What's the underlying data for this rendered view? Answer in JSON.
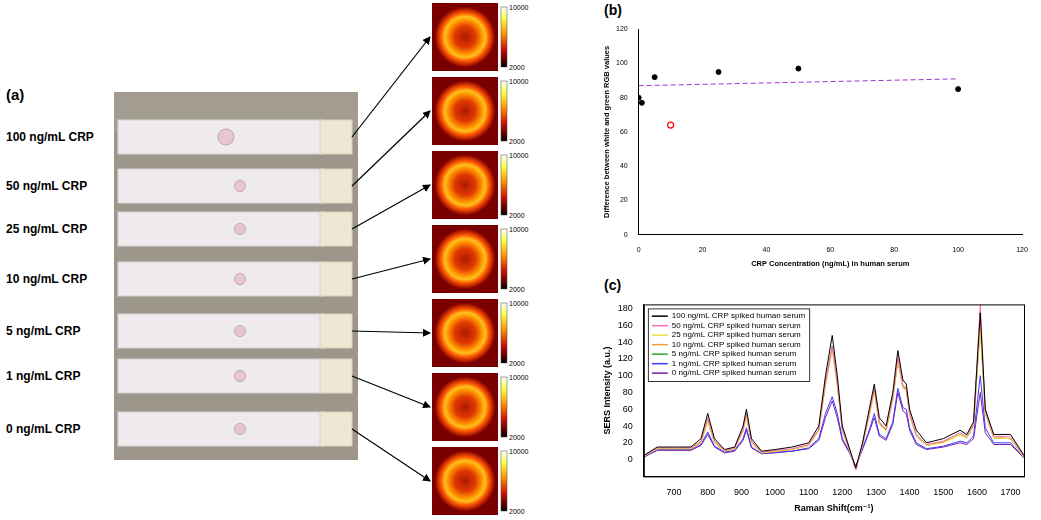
{
  "panels": [
    {
      "letter": "(a)",
      "strips": [
        {
          "label": "100 ng/mL CRP",
          "colorbar_ticks": [
            2000,
            10000
          ]
        },
        {
          "label": "50 ng/mL CRP",
          "colorbar_ticks": [
            2000,
            10000
          ]
        },
        {
          "label": "25 ng/mL CRP",
          "colorbar_ticks": [
            2000,
            10000
          ]
        },
        {
          "label": "10 ng/mL CRP",
          "colorbar_ticks": [
            2000,
            10000
          ]
        },
        {
          "label": "5 ng/mL CRP",
          "colorbar_ticks": [
            2000,
            10000
          ]
        },
        {
          "label": "1 ng/mL CRP",
          "colorbar_ticks": [
            2000,
            10000
          ]
        },
        {
          "label": "0 ng/mL CRP",
          "colorbar_ticks": [
            2000,
            10000
          ]
        }
      ]
    }
  ],
  "chart_data": [
    {
      "letter": "(b)",
      "type": "scatter",
      "x_label": "CRP Concentration (ng/mL) in human serum",
      "y_label": "Difference between white and green RGB values",
      "xlim": [
        0,
        120
      ],
      "xticks": [
        0,
        20,
        40,
        60,
        80,
        100,
        120
      ],
      "ylim": [
        0,
        120
      ],
      "yticks": [
        0,
        20,
        40,
        60,
        80,
        100,
        120
      ],
      "grid": false,
      "series": [
        {
          "color": "#000000",
          "marker": "circle",
          "x": [
            0,
            1,
            5,
            25,
            50,
            100
          ],
          "values": [
            80,
            77,
            92,
            95,
            97,
            85
          ]
        },
        {
          "color": "#ff0000",
          "marker": "open_circle",
          "x": [
            10
          ],
          "values": [
            64
          ]
        },
        {
          "type": "line",
          "line_style": "dashed",
          "color": "#9933cc",
          "x": [
            0,
            100
          ],
          "values": [
            87,
            91
          ]
        }
      ]
    },
    {
      "letter": "(c)",
      "type": "line",
      "x_label": "Raman Shift(cm⁻¹)",
      "y_label": "SERS Intensity (a.u.)",
      "xlim": [
        610,
        1740
      ],
      "xticks": [
        700,
        800,
        900,
        1000,
        1100,
        1200,
        1300,
        1400,
        1500,
        1600,
        1700
      ],
      "ylim": [
        -20,
        185
      ],
      "yticks": [
        0,
        20,
        40,
        60,
        80,
        100,
        120,
        140,
        160,
        180
      ],
      "grid": false,
      "legend": "top-left",
      "x": [
        610,
        650,
        700,
        750,
        780,
        800,
        820,
        850,
        880,
        905,
        915,
        930,
        960,
        1000,
        1050,
        1100,
        1130,
        1150,
        1170,
        1185,
        1200,
        1220,
        1240,
        1260,
        1280,
        1295,
        1310,
        1330,
        1350,
        1365,
        1380,
        1390,
        1400,
        1420,
        1450,
        1500,
        1550,
        1570,
        1590,
        1610,
        1625,
        1650,
        1700,
        1740
      ],
      "series": [
        {
          "name": "100 ng/mL CRP spiked human serum",
          "color": "#000000",
          "values": [
            5,
            15,
            15,
            15,
            25,
            55,
            25,
            12,
            15,
            40,
            60,
            25,
            10,
            12,
            15,
            20,
            40,
            100,
            148,
            100,
            40,
            15,
            -10,
            20,
            60,
            90,
            50,
            40,
            80,
            130,
            95,
            90,
            60,
            35,
            20,
            25,
            35,
            30,
            45,
            175,
            60,
            30,
            30,
            5
          ]
        },
        {
          "name": "50 ng/mL CRP spiked human serum",
          "color": "#ff69b4",
          "values": [
            4,
            14,
            14,
            14,
            22,
            50,
            22,
            11,
            14,
            36,
            55,
            22,
            9,
            11,
            13,
            18,
            36,
            92,
            135,
            92,
            36,
            13,
            -12,
            18,
            55,
            85,
            45,
            36,
            75,
            122,
            88,
            85,
            55,
            30,
            18,
            22,
            32,
            28,
            42,
            185,
            58,
            28,
            27,
            4
          ]
        },
        {
          "name": "25 ng/mL CRP spiked human serum",
          "color": "#f2df4a",
          "values": [
            4,
            13,
            13,
            13,
            20,
            45,
            20,
            10,
            13,
            34,
            52,
            20,
            8,
            10,
            12,
            17,
            34,
            88,
            130,
            88,
            34,
            12,
            -12,
            17,
            52,
            80,
            42,
            34,
            70,
            118,
            85,
            82,
            52,
            28,
            17,
            20,
            30,
            26,
            40,
            160,
            55,
            26,
            25,
            3
          ]
        },
        {
          "name": "10 ng/mL CRP spiked human serum",
          "color": "#e8a33a",
          "values": [
            4,
            13,
            13,
            13,
            20,
            46,
            20,
            10,
            13,
            34,
            52,
            20,
            8,
            10,
            12,
            17,
            35,
            90,
            132,
            90,
            35,
            12,
            -12,
            17,
            52,
            82,
            43,
            35,
            72,
            120,
            86,
            84,
            54,
            28,
            17,
            21,
            30,
            26,
            40,
            165,
            55,
            26,
            25,
            3
          ]
        },
        {
          "name": "5 ng/mL CRP spiked human serum",
          "color": "#2ca02c",
          "values": [
            4,
            13,
            13,
            13,
            21,
            47,
            21,
            10,
            13,
            35,
            54,
            21,
            8,
            10,
            12,
            17,
            35,
            92,
            135,
            92,
            35,
            12,
            -12,
            17,
            54,
            84,
            44,
            35,
            72,
            118,
            88,
            85,
            55,
            28,
            17,
            21,
            30,
            26,
            40,
            160,
            55,
            26,
            25,
            3
          ]
        },
        {
          "name": "1 ng/mL CRP spiked human serum",
          "color": "#3a3aff",
          "values": [
            3,
            12,
            12,
            12,
            18,
            33,
            16,
            9,
            11,
            25,
            38,
            15,
            7,
            9,
            10,
            14,
            25,
            55,
            75,
            55,
            25,
            10,
            -8,
            13,
            35,
            55,
            30,
            25,
            45,
            85,
            62,
            60,
            38,
            20,
            13,
            16,
            22,
            20,
            28,
            100,
            38,
            20,
            20,
            2
          ]
        },
        {
          "name": "0 ng/mL CRP spiked human serum",
          "color": "#7e1fa0",
          "values": [
            3,
            11,
            11,
            11,
            17,
            30,
            15,
            8,
            10,
            23,
            35,
            14,
            7,
            8,
            10,
            13,
            23,
            50,
            70,
            50,
            23,
            9,
            -8,
            12,
            33,
            50,
            28,
            23,
            42,
            80,
            58,
            55,
            35,
            18,
            12,
            15,
            20,
            18,
            25,
            80,
            32,
            18,
            18,
            2
          ]
        }
      ]
    }
  ]
}
